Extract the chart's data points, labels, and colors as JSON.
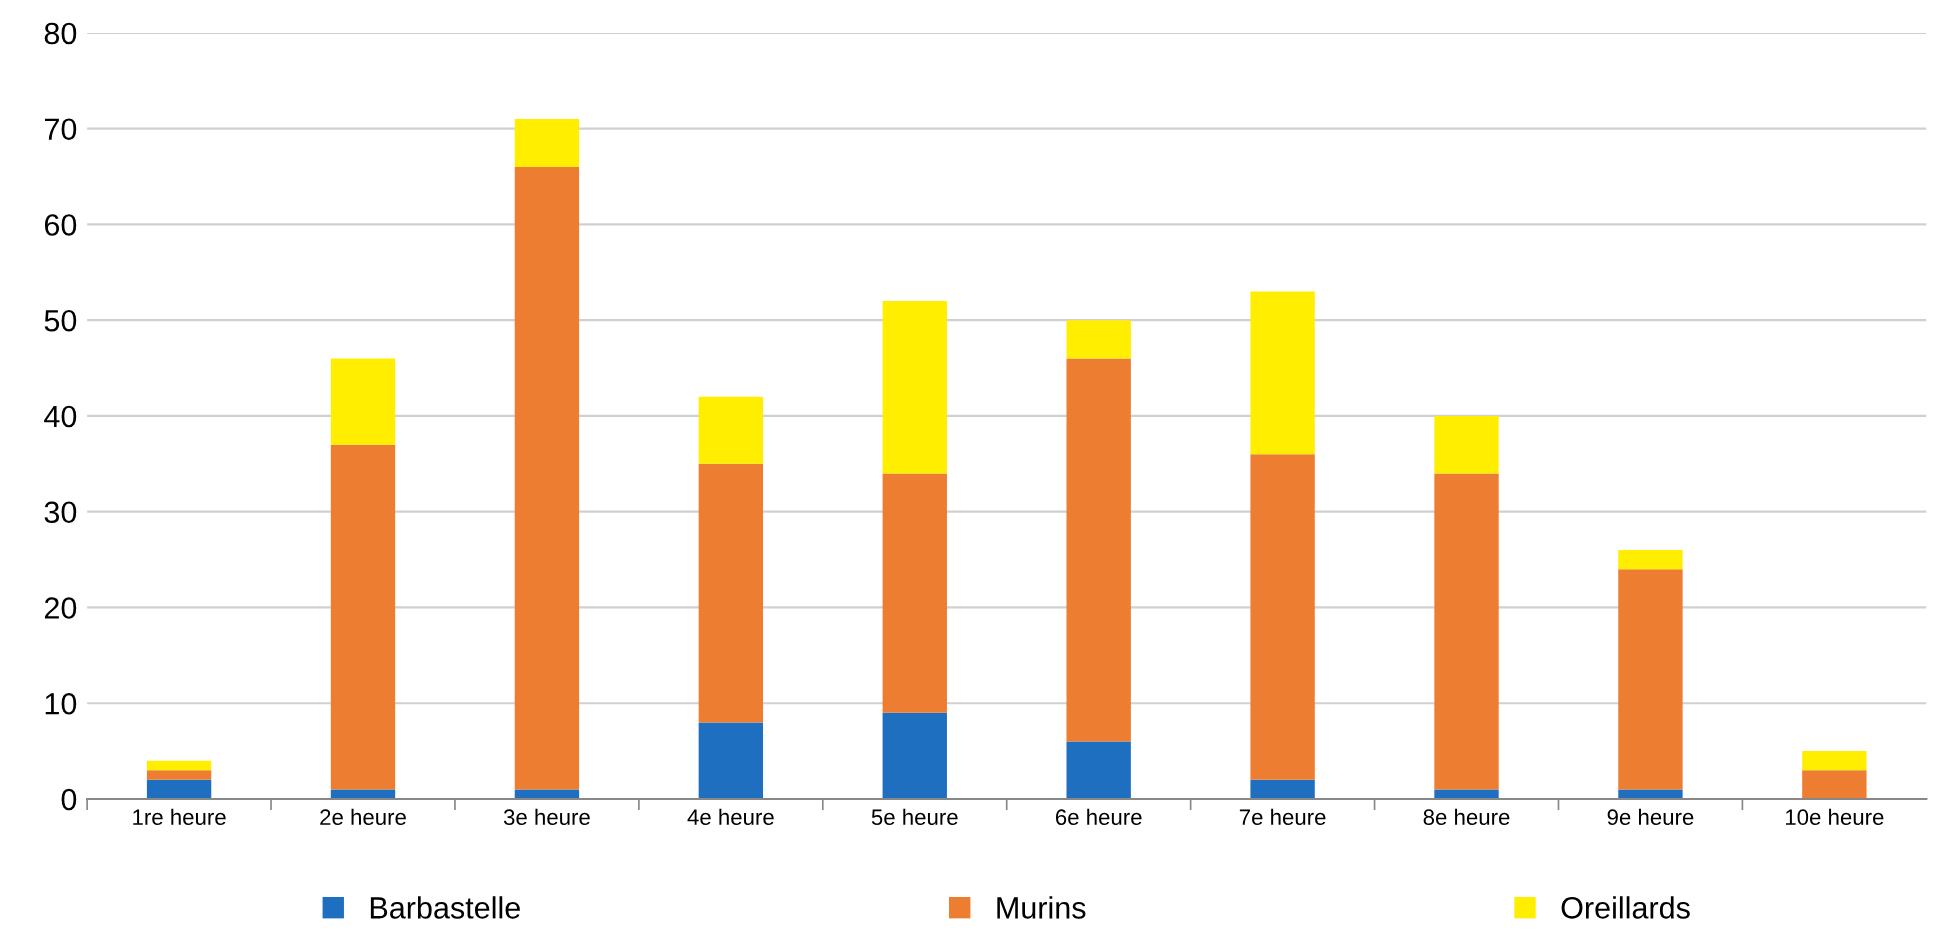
{
  "chart_data": {
    "type": "bar",
    "stacked": true,
    "categories": [
      "1re heure",
      "2e heure",
      "3e heure",
      "4e heure",
      "5e heure",
      "6e heure",
      "7e heure",
      "8e heure",
      "9e heure",
      "10e heure"
    ],
    "series": [
      {
        "name": "Barbastelle",
        "color": "#1f6fc0",
        "values": [
          2,
          1,
          1,
          8,
          9,
          6,
          2,
          1,
          1,
          0
        ]
      },
      {
        "name": "Murins",
        "color": "#ed7d31",
        "values": [
          1,
          36,
          65,
          27,
          25,
          40,
          34,
          33,
          23,
          3
        ]
      },
      {
        "name": "Oreillards",
        "color": "#ffee00",
        "values": [
          1,
          9,
          5,
          7,
          18,
          4,
          17,
          6,
          2,
          2
        ]
      }
    ],
    "ylim": [
      0,
      80
    ],
    "yticks": [
      0,
      10,
      20,
      30,
      40,
      50,
      60,
      70,
      80
    ],
    "grid": "y",
    "legend": "bottom"
  }
}
